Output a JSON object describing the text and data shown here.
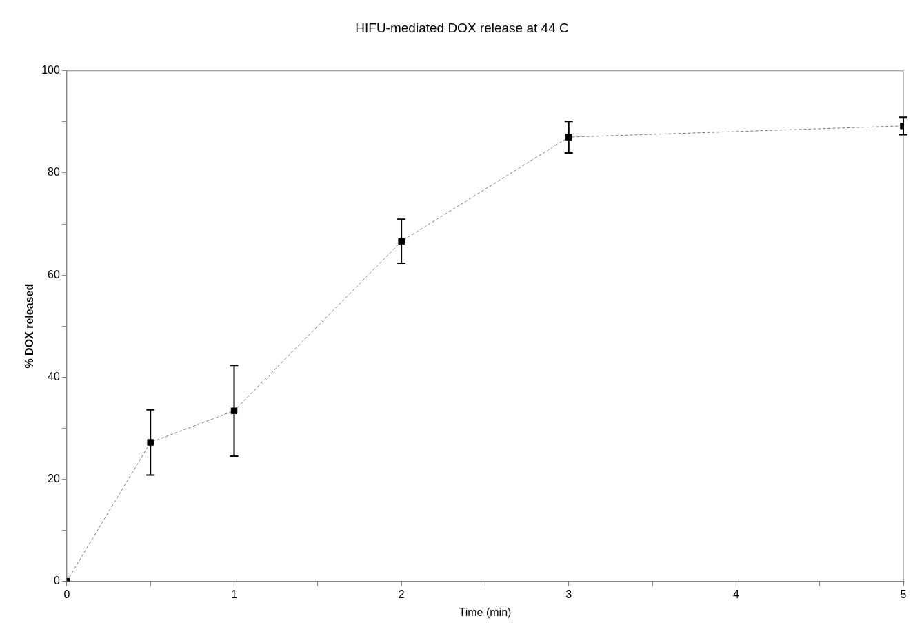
{
  "chart_data": {
    "type": "line",
    "title": "HIFU-mediated DOX release at 44 C",
    "xlabel": "Time (min)",
    "ylabel": "% DOX released",
    "x": [
      0,
      0.5,
      1,
      2,
      3,
      5
    ],
    "series": [
      {
        "color": "#000000",
        "values": [
          0,
          27.2,
          33.4,
          66.6,
          87.0,
          89.2
        ],
        "errors": [
          null,
          6.4,
          8.9,
          4.3,
          3.1,
          1.7
        ]
      }
    ],
    "xlim": [
      0,
      5
    ],
    "xticks": [
      0,
      {
        "value": 0.5,
        "label": null
      },
      1,
      {
        "value": 1.5,
        "label": null
      },
      2,
      {
        "value": 2.5,
        "label": null
      },
      3,
      {
        "value": 3.5,
        "label": null
      },
      4,
      {
        "value": 4.5,
        "label": null
      },
      5
    ],
    "ylim": [
      0,
      100
    ],
    "yticks": [
      0,
      {
        "value": 10,
        "label": null
      },
      20,
      {
        "value": 30,
        "label": null
      },
      40,
      {
        "value": 50,
        "label": null
      },
      60,
      {
        "value": 70,
        "label": null
      },
      80,
      {
        "value": 90,
        "label": null
      },
      100
    ],
    "grid": false,
    "legend": false,
    "marker": "square",
    "line_style": "dashed"
  }
}
